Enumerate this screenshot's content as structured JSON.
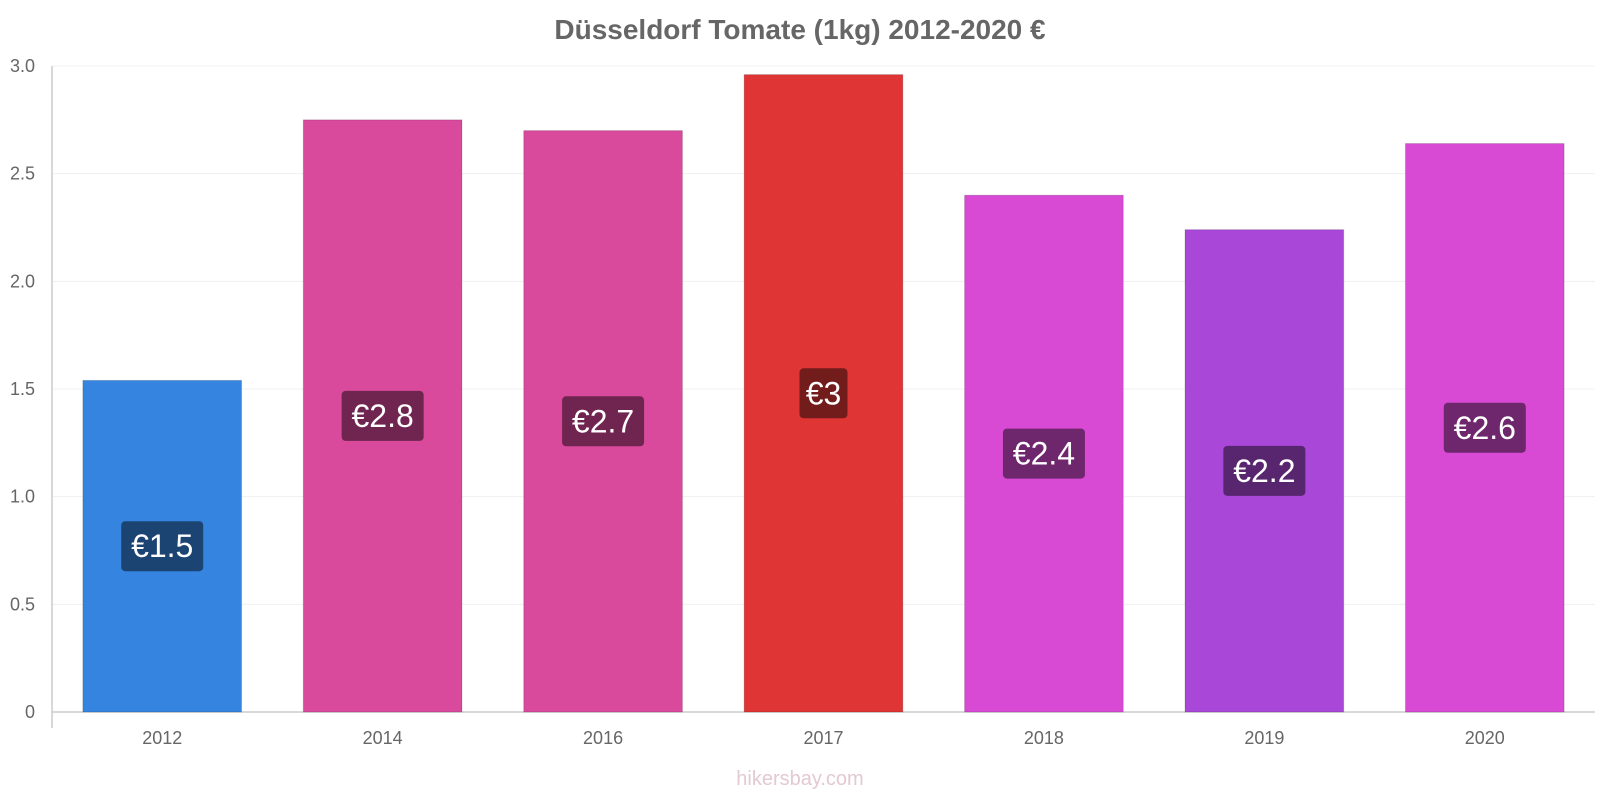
{
  "chart_data": {
    "type": "bar",
    "title": "Düsseldorf Tomate (1kg) 2012-2020 €",
    "categories": [
      "2012",
      "2014",
      "2016",
      "2017",
      "2018",
      "2019",
      "2020"
    ],
    "values": [
      1.54,
      2.75,
      2.7,
      2.96,
      2.4,
      2.24,
      2.64
    ],
    "data_labels": [
      "€1.5",
      "€2.8",
      "€2.7",
      "€3",
      "€2.4",
      "€2.2",
      "€2.6"
    ],
    "bar_colors": [
      "#3584e0",
      "#d9499c",
      "#d9499c",
      "#e03535",
      "#d84ad4",
      "#a948d8",
      "#d84ad4"
    ],
    "label_bg_colors": [
      "#1c4472",
      "#6f2550",
      "#6f2550",
      "#731c1c",
      "#6e266c",
      "#57266e",
      "#6e266c"
    ],
    "ylim": [
      0,
      3.0
    ],
    "yticks": [
      "0",
      "0.5",
      "1.0",
      "1.5",
      "2.0",
      "2.5",
      "3.0"
    ],
    "ytick_values": [
      0,
      0.5,
      1.0,
      1.5,
      2.0,
      2.5,
      3.0
    ],
    "xlabel": "",
    "ylabel": "",
    "grid": true,
    "legend": "none"
  },
  "footer": {
    "watermark": "hikersbay.com"
  }
}
